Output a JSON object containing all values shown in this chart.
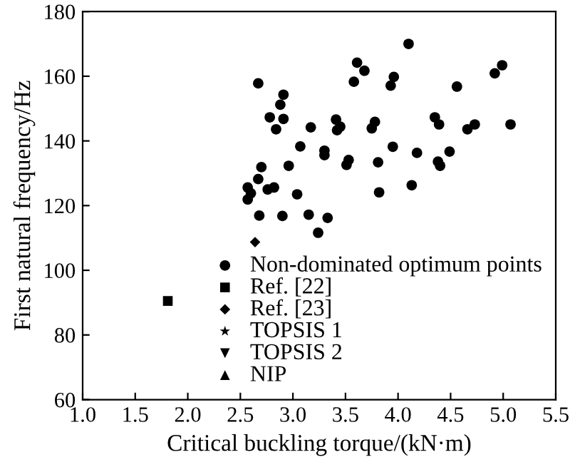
{
  "chart_data": {
    "type": "scatter",
    "xlabel": "Critical buckling torque/(kN·m)",
    "ylabel": "First natural frequency/Hz",
    "xlim": [
      1.0,
      5.5
    ],
    "xticks": [
      {
        "value": 1.0,
        "label": "1.0"
      },
      {
        "value": 1.5,
        "label": "1.5"
      },
      {
        "value": 2.0,
        "label": "2.0"
      },
      {
        "value": 2.5,
        "label": "2.5"
      },
      {
        "value": 3.0,
        "label": "3.0"
      },
      {
        "value": 3.5,
        "label": "3.5"
      },
      {
        "value": 4.0,
        "label": "4.0"
      },
      {
        "value": 4.5,
        "label": "4.5"
      },
      {
        "value": 5.0,
        "label": "5.0"
      },
      {
        "value": 5.5,
        "label": "5.5"
      }
    ],
    "ylim": [
      60,
      180
    ],
    "yticks": [
      60,
      80,
      100,
      120,
      140,
      160,
      180
    ],
    "grid": false,
    "legend": "bottom right",
    "series": [
      {
        "name": "Non-dominated optimum points",
        "color": "#000000",
        "marker": "circle",
        "x": [
          4.1,
          3.61,
          3.68,
          3.58,
          3.96,
          3.93,
          4.99,
          4.92,
          4.56,
          2.67,
          2.91,
          2.88,
          2.78,
          2.91,
          2.84,
          3.17,
          3.41,
          3.45,
          3.42,
          3.78,
          3.75,
          4.35,
          4.39,
          4.73,
          4.66,
          5.07,
          3.07,
          3.3,
          3.3,
          3.95,
          4.18,
          4.49,
          3.53,
          3.51,
          3.81,
          4.38,
          4.4,
          2.7,
          2.96,
          2.67,
          4.13,
          3.82,
          2.57,
          2.6,
          2.57,
          2.76,
          2.82,
          3.04,
          2.68,
          2.9,
          3.15,
          3.33,
          3.24
        ],
        "values": [
          170.0,
          164.2,
          161.7,
          158.3,
          159.8,
          157.1,
          163.4,
          160.9,
          156.8,
          157.8,
          154.3,
          151.2,
          147.3,
          146.8,
          143.6,
          144.2,
          146.6,
          144.4,
          143.3,
          145.9,
          143.9,
          147.3,
          145.1,
          145.1,
          143.6,
          145.1,
          138.3,
          137.0,
          135.6,
          138.2,
          136.3,
          136.7,
          134.1,
          132.6,
          133.4,
          133.6,
          132.3,
          131.9,
          132.3,
          128.2,
          126.3,
          124.1,
          125.6,
          123.8,
          121.9,
          125.0,
          125.6,
          123.5,
          116.9,
          116.8,
          117.2,
          116.2,
          111.6
        ]
      },
      {
        "name": "Ref. [22]",
        "color": "#000000",
        "marker": "square",
        "x": [
          1.81
        ],
        "values": [
          90.5
        ]
      },
      {
        "name": "Ref. [23]",
        "color": "#000000",
        "marker": "diamond",
        "x": [
          2.64
        ],
        "values": [
          108.7
        ]
      },
      {
        "name": "TOPSIS 1",
        "color": "#000000",
        "marker": "star",
        "x": [
          null
        ],
        "values": [
          null
        ]
      },
      {
        "name": "TOPSIS 2",
        "color": "#000000",
        "marker": "triangle_down",
        "x": [
          null
        ],
        "values": [
          null
        ]
      },
      {
        "name": "NIP",
        "color": "#000000",
        "marker": "triangle",
        "x": [
          null
        ],
        "values": [
          null
        ]
      }
    ]
  }
}
